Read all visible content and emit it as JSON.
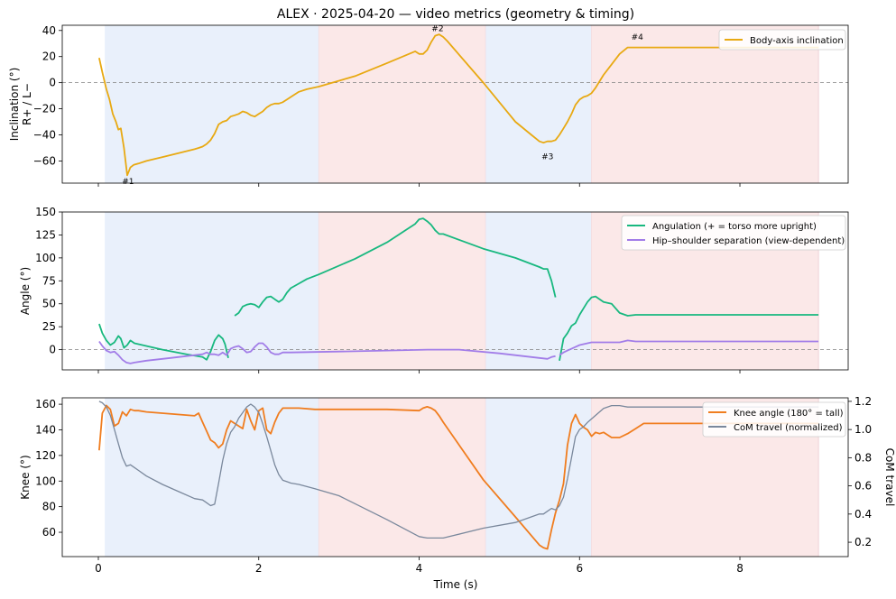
{
  "title": "ALEX · 2025-04-20 — video metrics (geometry & timing)",
  "xlabel": "Time (s)",
  "chart_data": [
    {
      "type": "line",
      "ylabel": "Inclination (°)\nR+ / L−",
      "xlim": [
        -0.45,
        9.35
      ],
      "ylim": [
        -77,
        44
      ],
      "xticks": [
        0,
        2,
        4,
        6,
        8
      ],
      "yticks": [
        -60,
        -40,
        -20,
        0,
        20,
        40
      ],
      "show_xtick_labels": false,
      "zero_line": true,
      "series": [
        {
          "name": "Body-axis inclination",
          "color": "#e8a912",
          "x": [
            0.01,
            0.05,
            0.1,
            0.14,
            0.18,
            0.22,
            0.25,
            0.28,
            0.32,
            0.36,
            0.4,
            0.44,
            0.5,
            0.6,
            0.8,
            1.0,
            1.2,
            1.25,
            1.3,
            1.35,
            1.4,
            1.45,
            1.5,
            1.55,
            1.6,
            1.65,
            1.7,
            1.75,
            1.8,
            1.85,
            1.9,
            1.95,
            2.0,
            2.05,
            2.1,
            2.15,
            2.2,
            2.25,
            2.3,
            2.35,
            2.4,
            2.5,
            2.6,
            2.75,
            3.2,
            3.6,
            3.95,
            4.0,
            4.05,
            4.1,
            4.15,
            4.2,
            4.25,
            4.3,
            4.35,
            4.8,
            5.2,
            5.4,
            5.5,
            5.55,
            5.6,
            5.65,
            5.7,
            5.75,
            5.8,
            5.85,
            5.9,
            5.95,
            6.0,
            6.05,
            6.1,
            6.15,
            6.2,
            6.3,
            6.4,
            6.5,
            6.6,
            6.7,
            6.8,
            7.0,
            8.0,
            8.98
          ],
          "y": [
            19,
            8,
            -5,
            -13,
            -24,
            -30,
            -36,
            -35,
            -50,
            -71,
            -65,
            -63,
            -62,
            -60,
            -57,
            -54,
            -51,
            -50,
            -49,
            -47,
            -44,
            -39,
            -32,
            -30,
            -29,
            -26,
            -25,
            -24,
            -22,
            -23,
            -25,
            -26,
            -24,
            -22,
            -19,
            -17,
            -16,
            -16,
            -15,
            -13,
            -11,
            -7,
            -5,
            -3,
            5,
            15,
            24,
            22,
            22,
            25,
            31,
            36,
            37,
            35,
            32,
            0,
            -30,
            -40,
            -45,
            -46,
            -45,
            -45,
            -44,
            -40,
            -35,
            -30,
            -24,
            -17,
            -13,
            -11,
            -10,
            -8,
            -4,
            6,
            14,
            22,
            27,
            27,
            27,
            27,
            27,
            27
          ]
        }
      ],
      "annotations": [
        {
          "text": "#1",
          "x": 0.37,
          "y": -75.5
        },
        {
          "text": "#2",
          "x": 4.23,
          "y": 41.5
        },
        {
          "text": "#3",
          "x": 5.6,
          "y": -56.5
        },
        {
          "text": "#4",
          "x": 6.72,
          "y": 35
        }
      ]
    },
    {
      "type": "line",
      "ylabel": "Angle (°)",
      "xlim": [
        -0.45,
        9.35
      ],
      "ylim": [
        -22,
        150
      ],
      "xticks": [
        0,
        2,
        4,
        6,
        8
      ],
      "yticks": [
        0,
        25,
        50,
        75,
        100,
        125,
        150
      ],
      "show_xtick_labels": false,
      "zero_line": true,
      "series": [
        {
          "name": "Angulation (+ = torso more upright)",
          "color": "#18b87f",
          "segments": [
            {
              "x": [
                0.01,
                0.05,
                0.1,
                0.15,
                0.2,
                0.25,
                0.28,
                0.32,
                0.36,
                0.4,
                0.45,
                0.5,
                0.8,
                1.1,
                1.3,
                1.35,
                1.4,
                1.45,
                1.5,
                1.55,
                1.58,
                1.62
              ],
              "y": [
                28,
                18,
                10,
                5,
                8,
                15,
                12,
                2,
                5,
                10,
                7,
                6,
                0,
                -5,
                -8,
                -11,
                -2,
                10,
                16,
                12,
                6,
                -9
              ]
            },
            {
              "x": [
                1.7,
                1.75,
                1.8,
                1.85,
                1.9,
                1.95,
                2.0,
                2.05,
                2.1,
                2.15,
                2.2,
                2.25,
                2.3,
                2.35,
                2.4,
                2.5,
                2.6,
                2.75,
                3.2,
                3.6,
                3.95,
                4.0,
                4.05,
                4.1,
                4.15,
                4.2,
                4.25,
                4.3,
                4.8,
                5.2,
                5.5,
                5.55,
                5.6,
                5.65,
                5.7
              ],
              "y": [
                37,
                40,
                47,
                49,
                50,
                49,
                46,
                52,
                57,
                58,
                55,
                52,
                55,
                62,
                67,
                72,
                77,
                82,
                99,
                117,
                137,
                142,
                143,
                140,
                136,
                130,
                126,
                126,
                110,
                100,
                90,
                88,
                88,
                75,
                57
              ]
            },
            {
              "x": [
                5.75,
                5.8,
                5.85,
                5.9,
                5.95,
                6.0,
                6.05,
                6.1,
                6.15,
                6.2,
                6.3,
                6.4,
                6.5,
                6.6,
                6.7,
                6.8,
                7.0,
                8.0,
                8.98
              ],
              "y": [
                -12,
                12,
                18,
                26,
                29,
                38,
                45,
                52,
                57,
                58,
                52,
                50,
                40,
                37,
                38,
                38,
                38,
                38,
                38
              ]
            }
          ]
        },
        {
          "name": "Hip–shoulder separation (view-dependent)",
          "color": "#a27de8",
          "segments": [
            {
              "x": [
                0.01,
                0.05,
                0.1,
                0.15,
                0.2,
                0.25,
                0.3,
                0.35,
                0.4,
                0.45,
                0.6,
                0.9,
                1.2,
                1.3,
                1.35,
                1.4,
                1.45,
                1.5,
                1.55,
                1.6,
                1.65,
                1.7,
                1.75,
                1.8,
                1.85,
                1.9,
                1.95,
                2.0,
                2.05,
                2.1,
                2.15,
                2.2,
                2.25,
                2.3,
                2.4,
                3.0,
                3.6,
                4.1,
                4.5,
                5.0,
                5.5,
                5.6,
                5.65,
                5.7
              ],
              "y": [
                9,
                4,
                -1,
                -3,
                -2,
                -6,
                -11,
                -14,
                -15,
                -14,
                -12,
                -9,
                -6,
                -5,
                -3,
                -5,
                -5,
                -6,
                -3,
                -6,
                1,
                3,
                4,
                1,
                -3,
                -2,
                3,
                7,
                7,
                3,
                -3,
                -5,
                -5,
                -3,
                -3,
                -2,
                -1,
                0,
                0,
                -4,
                -9,
                -10,
                -8,
                -7
              ]
            },
            {
              "x": [
                5.75,
                5.8,
                5.85,
                5.9,
                5.95,
                6.0,
                6.05,
                6.1,
                6.15,
                6.2,
                6.3,
                6.4,
                6.5,
                6.6,
                6.7,
                6.8,
                7.0,
                8.0,
                8.98
              ],
              "y": [
                -6,
                -3,
                -1,
                1,
                3,
                5,
                6,
                7,
                8,
                8,
                8,
                8,
                8,
                10,
                9,
                9,
                9,
                9,
                9
              ]
            }
          ]
        }
      ]
    },
    {
      "type": "line",
      "ylabel": "Knee (°)",
      "y2label": "CoM travel",
      "xlim": [
        -0.45,
        9.35
      ],
      "ylim": [
        41,
        165
      ],
      "y2lim": [
        0.098,
        1.225
      ],
      "xticks": [
        0,
        2,
        4,
        6,
        8
      ],
      "yticks": [
        60,
        80,
        100,
        120,
        140,
        160
      ],
      "y2ticks": [
        0.2,
        0.4,
        0.6,
        0.8,
        1.0,
        1.2
      ],
      "show_xtick_labels": true,
      "series": [
        {
          "name": "Knee angle (180° = tall)",
          "color": "#f07d1f",
          "axis": "left",
          "x": [
            0.01,
            0.05,
            0.1,
            0.15,
            0.2,
            0.25,
            0.3,
            0.35,
            0.4,
            0.45,
            0.5,
            0.6,
            1.2,
            1.25,
            1.3,
            1.35,
            1.4,
            1.45,
            1.5,
            1.55,
            1.6,
            1.65,
            1.7,
            1.75,
            1.8,
            1.85,
            1.9,
            1.95,
            2.0,
            2.05,
            2.1,
            2.15,
            2.2,
            2.25,
            2.3,
            2.35,
            2.4,
            2.5,
            2.7,
            3.2,
            3.6,
            4.0,
            4.05,
            4.1,
            4.15,
            4.2,
            4.25,
            4.3,
            4.8,
            5.2,
            5.5,
            5.55,
            5.6,
            5.65,
            5.7,
            5.75,
            5.8,
            5.85,
            5.9,
            5.95,
            6.0,
            6.05,
            6.1,
            6.15,
            6.2,
            6.25,
            6.3,
            6.4,
            6.5,
            6.6,
            6.7,
            6.8,
            7.0,
            8.0,
            8.98
          ],
          "y": [
            124,
            153,
            159,
            156,
            143,
            145,
            154,
            151,
            156,
            155,
            155,
            154,
            151,
            153,
            146,
            139,
            132,
            130,
            126,
            129,
            140,
            147,
            145,
            143,
            141,
            156,
            147,
            140,
            155,
            157,
            140,
            137,
            146,
            153,
            157,
            157,
            157,
            157,
            156,
            156,
            156,
            155,
            157,
            158,
            157,
            155,
            151,
            146,
            101,
            72,
            50,
            48,
            47,
            62,
            75,
            85,
            98,
            128,
            145,
            152,
            145,
            142,
            140,
            135,
            138,
            137,
            138,
            134,
            134,
            137,
            141,
            145,
            145,
            145,
            145
          ]
        },
        {
          "name": "CoM travel (normalized)",
          "color": "#7a889c",
          "axis": "right",
          "x": [
            0.01,
            0.05,
            0.1,
            0.15,
            0.2,
            0.25,
            0.3,
            0.35,
            0.4,
            0.45,
            0.5,
            0.6,
            0.8,
            1.0,
            1.2,
            1.3,
            1.35,
            1.4,
            1.45,
            1.5,
            1.55,
            1.6,
            1.65,
            1.7,
            1.75,
            1.8,
            1.85,
            1.9,
            1.95,
            2.0,
            2.05,
            2.1,
            2.15,
            2.2,
            2.25,
            2.3,
            2.35,
            2.4,
            2.5,
            2.7,
            3.0,
            3.6,
            4.0,
            4.1,
            4.2,
            4.3,
            4.8,
            5.2,
            5.5,
            5.55,
            5.6,
            5.65,
            5.7,
            5.75,
            5.8,
            5.85,
            5.9,
            5.95,
            6.0,
            6.05,
            6.1,
            6.2,
            6.3,
            6.4,
            6.5,
            6.6,
            6.7,
            6.8,
            7.0,
            8.0,
            8.98
          ],
          "y": [
            1.2,
            1.19,
            1.16,
            1.1,
            1.0,
            0.9,
            0.8,
            0.74,
            0.75,
            0.73,
            0.71,
            0.67,
            0.61,
            0.56,
            0.51,
            0.5,
            0.48,
            0.46,
            0.47,
            0.62,
            0.78,
            0.9,
            0.98,
            1.02,
            1.08,
            1.12,
            1.16,
            1.18,
            1.16,
            1.12,
            1.04,
            0.95,
            0.85,
            0.75,
            0.68,
            0.64,
            0.63,
            0.62,
            0.61,
            0.58,
            0.53,
            0.36,
            0.24,
            0.23,
            0.23,
            0.23,
            0.3,
            0.34,
            0.4,
            0.4,
            0.42,
            0.44,
            0.43,
            0.46,
            0.52,
            0.65,
            0.8,
            0.95,
            1.0,
            1.02,
            1.05,
            1.1,
            1.15,
            1.17,
            1.17,
            1.16,
            1.16,
            1.16,
            1.16,
            1.16,
            1.16
          ]
        }
      ]
    }
  ],
  "phase_bands": [
    {
      "start": 0.08,
      "end": 2.75,
      "color": "#e9f0fb"
    },
    {
      "start": 2.75,
      "end": 4.83,
      "color": "#fbe8e8"
    },
    {
      "start": 4.83,
      "end": 6.15,
      "color": "#e9f0fb"
    },
    {
      "start": 6.15,
      "end": 8.98,
      "color": "#fbe8e8"
    }
  ]
}
